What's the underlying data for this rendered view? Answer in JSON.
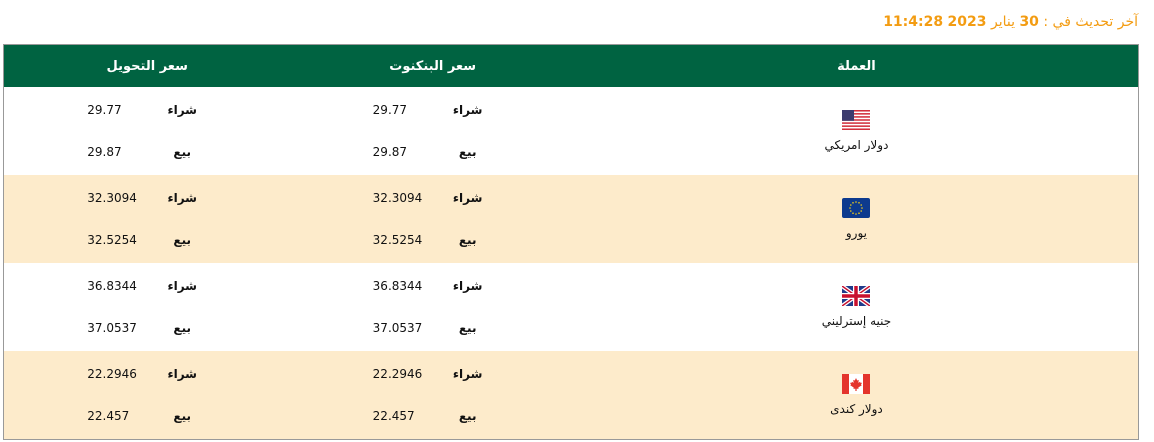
{
  "updated": {
    "prefix": "آخر تحديث في :",
    "day": "30",
    "month": "يناير",
    "year": "2023",
    "time": "11:4:28"
  },
  "headers": {
    "currency": "العملة",
    "banknote": "سعر البنكنوت",
    "transfer": "سعر التحويل"
  },
  "labels": {
    "buy": "شراء",
    "sell": "بيع"
  },
  "colors": {
    "header": "#006341",
    "alt_row": "#fdebcb",
    "updated_text": "#f39c12"
  },
  "rows": [
    {
      "name": "دولار امريكي",
      "flag": "us-flag-icon",
      "banknote": {
        "buy": "29.77",
        "sell": "29.87"
      },
      "transfer": {
        "buy": "29.77",
        "sell": "29.87"
      }
    },
    {
      "name": "يورو",
      "flag": "eu-flag-icon",
      "banknote": {
        "buy": "32.3094",
        "sell": "32.5254"
      },
      "transfer": {
        "buy": "32.3094",
        "sell": "32.5254"
      }
    },
    {
      "name": "جنيه إسترليني",
      "flag": "uk-flag-icon",
      "banknote": {
        "buy": "36.8344",
        "sell": "37.0537"
      },
      "transfer": {
        "buy": "36.8344",
        "sell": "37.0537"
      }
    },
    {
      "name": "دولار كندى",
      "flag": "ca-flag-icon",
      "banknote": {
        "buy": "22.2946",
        "sell": "22.457"
      },
      "transfer": {
        "buy": "22.2946",
        "sell": "22.457"
      }
    }
  ]
}
